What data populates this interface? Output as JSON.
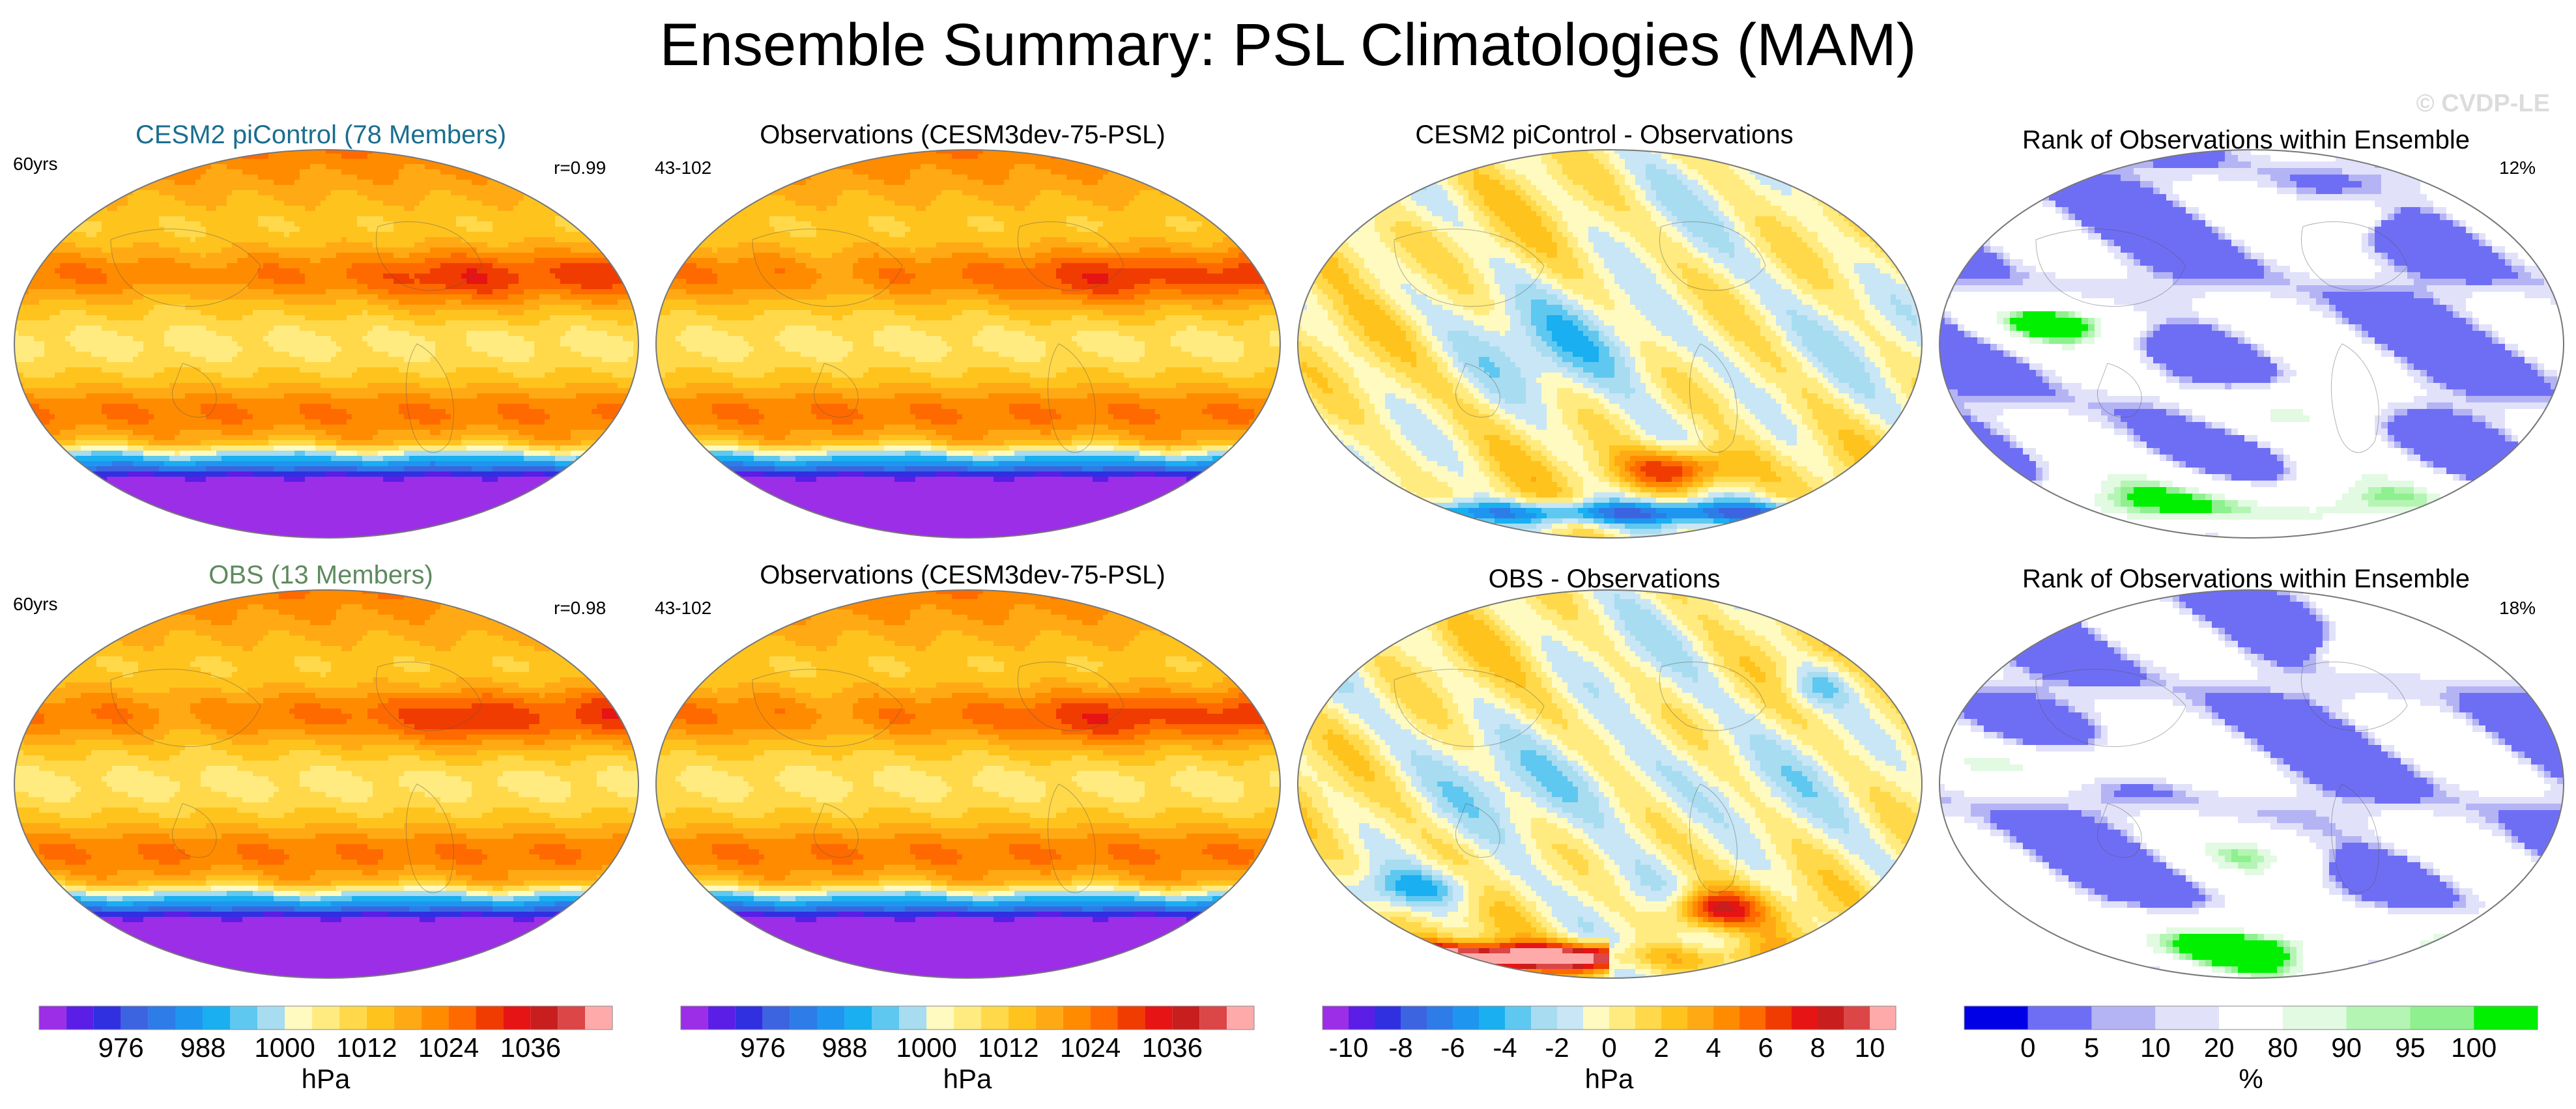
{
  "title": "Ensemble Summary: PSL Climatologies (MAM)",
  "watermark": "© CVDP-LE",
  "panels": [
    {
      "id": "p1",
      "title": "CESM2 piControl (78 Members)",
      "title_color": "#1a6e8e",
      "left_text": "60yrs",
      "right_text": "r=0.99",
      "kind": "psl",
      "variant": 0
    },
    {
      "id": "p2",
      "title": "Observations (CESM3dev-75-PSL)",
      "title_color": "#000000",
      "left_text": "43-102",
      "right_text": "",
      "kind": "psl",
      "variant": 1
    },
    {
      "id": "p3",
      "title": "CESM2 piControl - Observations",
      "title_color": "#000000",
      "left_text": "",
      "right_text": "",
      "kind": "diff",
      "variant": 0
    },
    {
      "id": "p4",
      "title": "Rank of Observations within Ensemble",
      "title_color": "#000000",
      "left_text": "",
      "right_text": "12%",
      "kind": "rank",
      "variant": 0
    },
    {
      "id": "p5",
      "title": "OBS (13 Members)",
      "title_color": "#5e8a5e",
      "left_text": "60yrs",
      "right_text": "r=0.98",
      "kind": "psl",
      "variant": 2
    },
    {
      "id": "p6",
      "title": "Observations (CESM3dev-75-PSL)",
      "title_color": "#000000",
      "left_text": "43-102",
      "right_text": "",
      "kind": "psl",
      "variant": 1
    },
    {
      "id": "p7",
      "title": "OBS - Observations",
      "title_color": "#000000",
      "left_text": "",
      "right_text": "",
      "kind": "diff",
      "variant": 1
    },
    {
      "id": "p8",
      "title": "Rank of Observations within Ensemble",
      "title_color": "#000000",
      "left_text": "",
      "right_text": "18%",
      "kind": "rank",
      "variant": 1
    }
  ],
  "chart_data": {
    "type": "heatmap",
    "colorbars": [
      {
        "id": "cb1",
        "unit": "hPa",
        "ticks": [
          "976",
          "988",
          "1000",
          "1012",
          "1024",
          "1036"
        ],
        "levels": [
          968,
          972,
          976,
          980,
          984,
          988,
          992,
          996,
          1000,
          1004,
          1008,
          1012,
          1016,
          1020,
          1024,
          1028,
          1032,
          1036,
          1040,
          1044
        ],
        "colors": [
          "#9b2ee6",
          "#5a1ee6",
          "#3030e0",
          "#3c64e0",
          "#2e7ce8",
          "#1e96f0",
          "#19aff0",
          "#5ec8f0",
          "#a8dcf0",
          "#fffac0",
          "#ffeb80",
          "#ffd94a",
          "#ffc31e",
          "#ffaa14",
          "#ff8c00",
          "#ff6a00",
          "#f03c00",
          "#e61414",
          "#c81e1e",
          "#dc4646",
          "#ffaaaa"
        ]
      },
      {
        "id": "cb2",
        "unit": "hPa",
        "ticks": [
          "976",
          "988",
          "1000",
          "1012",
          "1024",
          "1036"
        ],
        "levels": [
          968,
          972,
          976,
          980,
          984,
          988,
          992,
          996,
          1000,
          1004,
          1008,
          1012,
          1016,
          1020,
          1024,
          1028,
          1032,
          1036,
          1040,
          1044
        ],
        "colors": [
          "#9b2ee6",
          "#5a1ee6",
          "#3030e0",
          "#3c64e0",
          "#2e7ce8",
          "#1e96f0",
          "#19aff0",
          "#5ec8f0",
          "#a8dcf0",
          "#fffac0",
          "#ffeb80",
          "#ffd94a",
          "#ffc31e",
          "#ffaa14",
          "#ff8c00",
          "#ff6a00",
          "#f03c00",
          "#e61414",
          "#c81e1e",
          "#dc4646",
          "#ffaaaa"
        ]
      },
      {
        "id": "cb3",
        "unit": "hPa",
        "ticks": [
          "-10",
          "-8",
          "-6",
          "-4",
          "-2",
          "0",
          "2",
          "4",
          "6",
          "8",
          "10"
        ],
        "levels": [
          -10,
          -9,
          -8,
          -7,
          -6,
          -5,
          -4,
          -3,
          -2,
          -1,
          0,
          1,
          2,
          3,
          4,
          5,
          6,
          7,
          8,
          9,
          10
        ],
        "colors": [
          "#9b2ee6",
          "#5a1ee6",
          "#3030e0",
          "#3c64e0",
          "#2e7ce8",
          "#1e96f0",
          "#19aff0",
          "#5ec8f0",
          "#a8dcf0",
          "#c8e6f5",
          "#fffac0",
          "#ffeb80",
          "#ffd94a",
          "#ffc31e",
          "#ffaa14",
          "#ff8c00",
          "#ff6a00",
          "#f03c00",
          "#e61414",
          "#c81e1e",
          "#dc4646",
          "#ffaaaa"
        ]
      },
      {
        "id": "cb4",
        "unit": "%",
        "ticks": [
          "0",
          "5",
          "10",
          "20",
          "80",
          "90",
          "95",
          "100"
        ],
        "levels": [
          0,
          5,
          10,
          20,
          80,
          90,
          95,
          100
        ],
        "colors": [
          "#0000e6",
          "#6e6ef5",
          "#b4b4f5",
          "#e1e1fa",
          "#ffffff",
          "#e1fae1",
          "#b4f5b4",
          "#8ef08e",
          "#00f000"
        ]
      }
    ]
  }
}
